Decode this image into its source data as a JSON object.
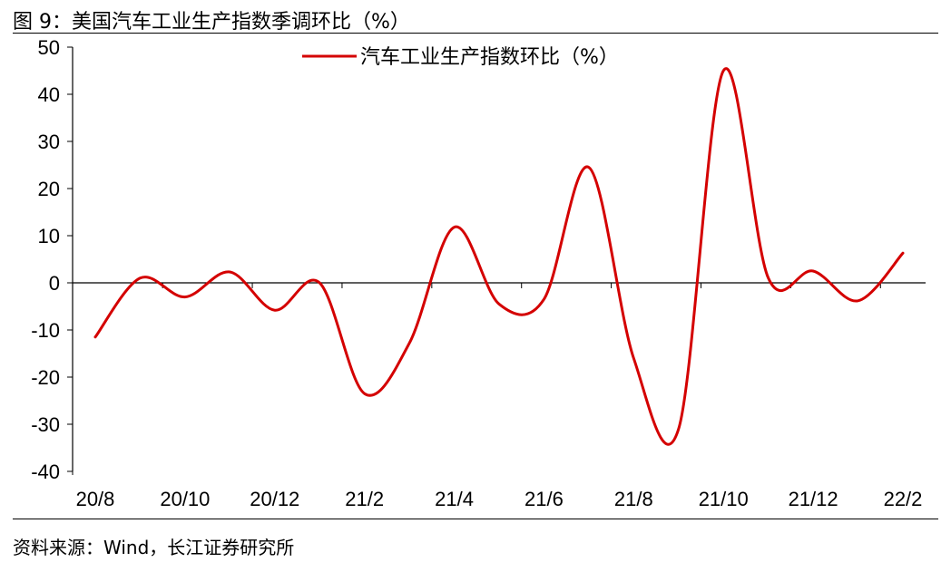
{
  "header": {
    "title": "图 9：美国汽车工业生产指数季调环比（%）"
  },
  "footer": {
    "source": "资料来源：Wind，长江证券研究所"
  },
  "chart_data": {
    "type": "line",
    "title": "",
    "xlabel": "",
    "ylabel": "",
    "ylim": [
      -40,
      50
    ],
    "yticks": [
      50,
      40,
      30,
      20,
      10,
      0,
      -10,
      -20,
      -30,
      -40
    ],
    "xticks": [
      "20/8",
      "20/10",
      "20/12",
      "21/2",
      "21/4",
      "21/6",
      "21/8",
      "21/10",
      "21/12",
      "22/2"
    ],
    "legend_position": "top-center",
    "grid": false,
    "series": [
      {
        "name": "汽车工业生产指数环比（%）",
        "color": "#d40000",
        "x": [
          "20/8",
          "20/9",
          "20/10",
          "20/11",
          "20/12",
          "21/1",
          "21/2",
          "21/3",
          "21/4",
          "21/5",
          "21/6",
          "21/7",
          "21/8",
          "21/9",
          "21/10",
          "21/11",
          "21/12",
          "22/1",
          "22/2"
        ],
        "values": [
          -11.5,
          1.0,
          -3.0,
          2.3,
          -5.8,
          0.0,
          -23.5,
          -12.8,
          11.8,
          -4.5,
          -3.5,
          24.5,
          -16.0,
          -31.0,
          45.0,
          1.0,
          2.5,
          -3.8,
          6.3
        ]
      }
    ]
  }
}
